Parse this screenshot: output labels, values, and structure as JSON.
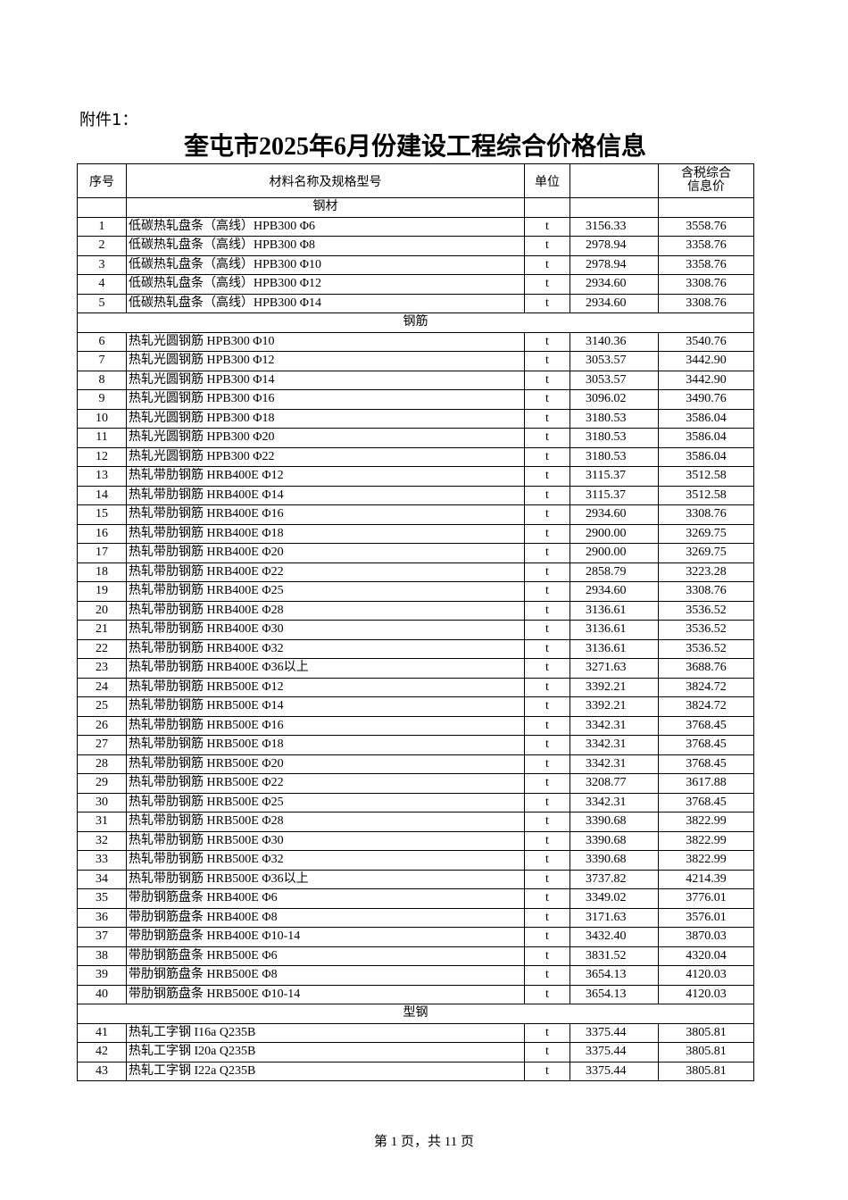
{
  "header": {
    "annex": "附件1：",
    "title": "奎屯市2025年6月份建设工程综合价格信息"
  },
  "table": {
    "headers": {
      "no": "序号",
      "name": "材料名称及规格型号",
      "unit": "单位",
      "price_tax": "含税综合信息价"
    },
    "sections": [
      {
        "title": "钢材",
        "rows": [
          [
            1,
            "低碳热轧盘条（高线）HPB300 Φ6",
            "t",
            "3156.33",
            "3558.76"
          ],
          [
            2,
            "低碳热轧盘条（高线）HPB300 Φ8",
            "t",
            "2978.94",
            "3358.76"
          ],
          [
            3,
            "低碳热轧盘条（高线）HPB300 Φ10",
            "t",
            "2978.94",
            "3358.76"
          ],
          [
            4,
            "低碳热轧盘条（高线）HPB300 Φ12",
            "t",
            "2934.60",
            "3308.76"
          ],
          [
            5,
            "低碳热轧盘条（高线）HPB300 Φ14",
            "t",
            "2934.60",
            "3308.76"
          ]
        ]
      },
      {
        "title": "钢筋",
        "rows": [
          [
            6,
            "热轧光圆钢筋 HPB300 Φ10",
            "t",
            "3140.36",
            "3540.76"
          ],
          [
            7,
            "热轧光圆钢筋 HPB300 Φ12",
            "t",
            "3053.57",
            "3442.90"
          ],
          [
            8,
            "热轧光圆钢筋 HPB300 Φ14",
            "t",
            "3053.57",
            "3442.90"
          ],
          [
            9,
            "热轧光圆钢筋 HPB300 Φ16",
            "t",
            "3096.02",
            "3490.76"
          ],
          [
            10,
            "热轧光圆钢筋 HPB300 Φ18",
            "t",
            "3180.53",
            "3586.04"
          ],
          [
            11,
            "热轧光圆钢筋 HPB300 Φ20",
            "t",
            "3180.53",
            "3586.04"
          ],
          [
            12,
            "热轧光圆钢筋 HPB300 Φ22",
            "t",
            "3180.53",
            "3586.04"
          ],
          [
            13,
            "热轧带肋钢筋 HRB400E Φ12",
            "t",
            "3115.37",
            "3512.58"
          ],
          [
            14,
            "热轧带肋钢筋 HRB400E Φ14",
            "t",
            "3115.37",
            "3512.58"
          ],
          [
            15,
            "热轧带肋钢筋 HRB400E Φ16",
            "t",
            "2934.60",
            "3308.76"
          ],
          [
            16,
            "热轧带肋钢筋 HRB400E Φ18",
            "t",
            "2900.00",
            "3269.75"
          ],
          [
            17,
            "热轧带肋钢筋 HRB400E Φ20",
            "t",
            "2900.00",
            "3269.75"
          ],
          [
            18,
            "热轧带肋钢筋 HRB400E Φ22",
            "t",
            "2858.79",
            "3223.28"
          ],
          [
            19,
            "热轧带肋钢筋 HRB400E Φ25",
            "t",
            "2934.60",
            "3308.76"
          ],
          [
            20,
            "热轧带肋钢筋 HRB400E Φ28",
            "t",
            "3136.61",
            "3536.52"
          ],
          [
            21,
            "热轧带肋钢筋 HRB400E Φ30",
            "t",
            "3136.61",
            "3536.52"
          ],
          [
            22,
            "热轧带肋钢筋 HRB400E Φ32",
            "t",
            "3136.61",
            "3536.52"
          ],
          [
            23,
            "热轧带肋钢筋 HRB400E Φ36以上",
            "t",
            "3271.63",
            "3688.76"
          ],
          [
            24,
            "热轧带肋钢筋 HRB500E Φ12",
            "t",
            "3392.21",
            "3824.72"
          ],
          [
            25,
            "热轧带肋钢筋 HRB500E Φ14",
            "t",
            "3392.21",
            "3824.72"
          ],
          [
            26,
            "热轧带肋钢筋 HRB500E Φ16",
            "t",
            "3342.31",
            "3768.45"
          ],
          [
            27,
            "热轧带肋钢筋 HRB500E Φ18",
            "t",
            "3342.31",
            "3768.45"
          ],
          [
            28,
            "热轧带肋钢筋 HRB500E Φ20",
            "t",
            "3342.31",
            "3768.45"
          ],
          [
            29,
            "热轧带肋钢筋 HRB500E Φ22",
            "t",
            "3208.77",
            "3617.88"
          ],
          [
            30,
            "热轧带肋钢筋 HRB500E Φ25",
            "t",
            "3342.31",
            "3768.45"
          ],
          [
            31,
            "热轧带肋钢筋 HRB500E Φ28",
            "t",
            "3390.68",
            "3822.99"
          ],
          [
            32,
            "热轧带肋钢筋 HRB500E Φ30",
            "t",
            "3390.68",
            "3822.99"
          ],
          [
            33,
            "热轧带肋钢筋 HRB500E Φ32",
            "t",
            "3390.68",
            "3822.99"
          ],
          [
            34,
            "热轧带肋钢筋 HRB500E Φ36以上",
            "t",
            "3737.82",
            "4214.39"
          ],
          [
            35,
            "带肋钢筋盘条 HRB400E Φ6",
            "t",
            "3349.02",
            "3776.01"
          ],
          [
            36,
            "带肋钢筋盘条 HRB400E Φ8",
            "t",
            "3171.63",
            "3576.01"
          ],
          [
            37,
            "带肋钢筋盘条 HRB400E Φ10-14",
            "t",
            "3432.40",
            "3870.03"
          ],
          [
            38,
            "带肋钢筋盘条 HRB500E Φ6",
            "t",
            "3831.52",
            "4320.04"
          ],
          [
            39,
            "带肋钢筋盘条 HRB500E Φ8",
            "t",
            "3654.13",
            "4120.03"
          ],
          [
            40,
            "带肋钢筋盘条 HRB500E Φ10-14",
            "t",
            "3654.13",
            "4120.03"
          ]
        ]
      },
      {
        "title": "型钢",
        "rows": [
          [
            41,
            "热轧工字钢 I16a Q235B",
            "t",
            "3375.44",
            "3805.81"
          ],
          [
            42,
            "热轧工字钢 I20a Q235B",
            "t",
            "3375.44",
            "3805.81"
          ],
          [
            43,
            "热轧工字钢 I22a Q235B",
            "t",
            "3375.44",
            "3805.81"
          ]
        ]
      }
    ]
  },
  "footer": {
    "page": "第 1 页，共 11 页"
  }
}
